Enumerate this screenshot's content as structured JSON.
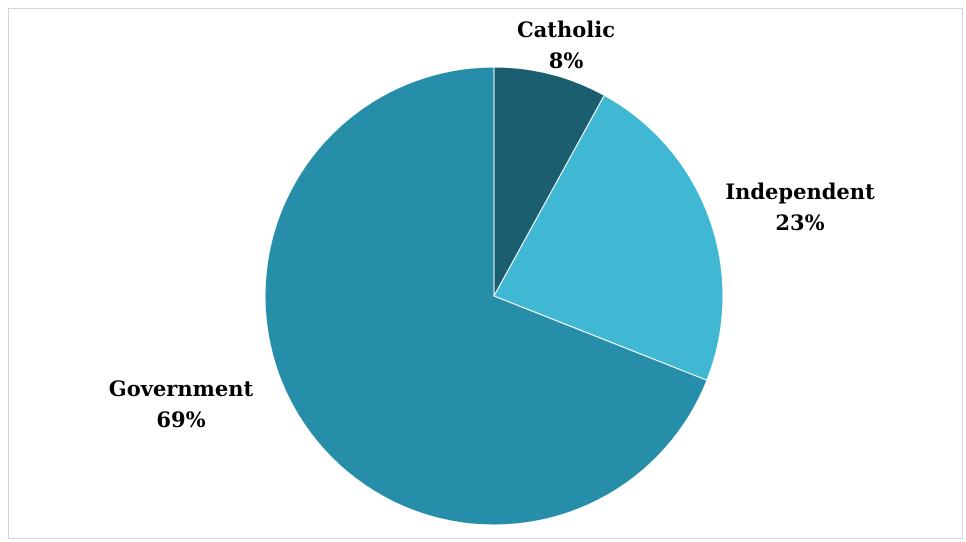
{
  "chart_data": {
    "type": "pie",
    "title": "",
    "slices": [
      {
        "label": "Catholic",
        "value": 8,
        "value_label": "8%",
        "color": "#1b5e70",
        "label_placement": "outside-top"
      },
      {
        "label": "Independent",
        "value": 23,
        "value_label": "23%",
        "color": "#40b8d4",
        "label_placement": "outside-right"
      },
      {
        "label": "Government",
        "value": 69,
        "value_label": "69%",
        "color": "#268ea8",
        "label_placement": "outside-left"
      }
    ],
    "start_angle": "top",
    "direction": "clockwise",
    "legend": "none"
  }
}
